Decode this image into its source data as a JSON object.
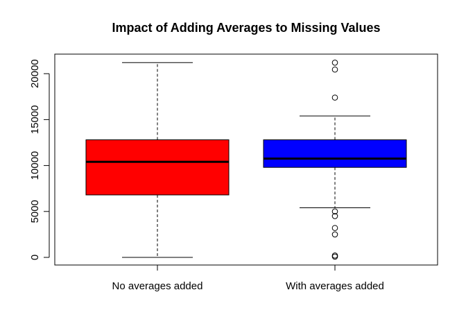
{
  "chart_data": {
    "type": "boxplot",
    "title": "Impact of Adding Averages to Missing Values",
    "xlabel": "",
    "ylabel": "",
    "ylim": [
      -800,
      22300
    ],
    "yticks": [
      0,
      5000,
      10000,
      15000,
      20000
    ],
    "ytick_labels": [
      "0",
      "5000",
      "10000",
      "15000",
      "20000"
    ],
    "grid": false,
    "legend": "none",
    "series": [
      {
        "category": "No averages added",
        "color": "#ff0000",
        "whisker_low": 0,
        "q1": 6800,
        "median": 10400,
        "q3": 12800,
        "whisker_high": 21200,
        "outliers": []
      },
      {
        "category": "With averages added",
        "color": "#0000ff",
        "whisker_low": 5400,
        "q1": 9800,
        "median": 10750,
        "q3": 12800,
        "whisker_high": 15400,
        "outliers": [
          21200,
          20450,
          17400,
          5000,
          4500,
          3200,
          2500,
          200,
          80
        ]
      }
    ]
  }
}
